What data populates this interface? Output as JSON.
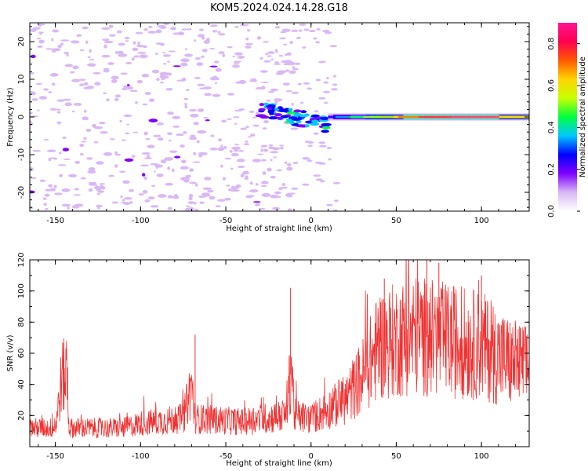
{
  "figure": {
    "title": "KOM5.2024.024.14.28.G18"
  },
  "chart_data": [
    {
      "type": "heatmap",
      "xlabel": "Height of straight line (km)",
      "ylabel": "Frequency (Hz)",
      "xlim": [
        -165,
        128
      ],
      "ylim": [
        -25,
        25
      ],
      "xticks": [
        -150,
        -100,
        -50,
        0,
        50,
        100
      ],
      "yticks": [
        -20,
        -10,
        0,
        10,
        20
      ],
      "colorbar": {
        "label": "Normalized spectral amplitude",
        "range": [
          0,
          0.9
        ],
        "ticks": [
          0.0,
          0.2,
          0.4,
          0.6,
          0.8
        ],
        "colors": [
          "#ffffff",
          "#d9b8f5",
          "#7f00ff",
          "#0000ff",
          "#00c8ff",
          "#00ff40",
          "#c8ff00",
          "#ffd400",
          "#ff5a00",
          "#ff0050",
          "#ff1493"
        ]
      },
      "features": [
        {
          "x_range": [
            10,
            128
          ],
          "frequency": 0,
          "amplitude": 0.6
        },
        {
          "x_range": [
            -30,
            10
          ],
          "frequency": 2,
          "amplitude": 0.3
        },
        {
          "x_range": [
            -165,
            -10
          ],
          "frequency_range": [
            -25,
            25
          ],
          "amplitude": 0.1
        }
      ]
    },
    {
      "type": "line",
      "xlabel": "Height of straight line (km)",
      "ylabel": "SNR (v/v)",
      "xlim": [
        -165,
        128
      ],
      "ylim": [
        0,
        120
      ],
      "xticks": [
        -150,
        -100,
        -50,
        0,
        50,
        100
      ],
      "yticks": [
        20,
        40,
        60,
        80,
        100,
        120
      ],
      "series_color": "#f03232",
      "profile": [
        {
          "x": -165,
          "y": 12
        },
        {
          "x": -150,
          "y": 12
        },
        {
          "x": -146,
          "y": 45
        },
        {
          "x": -143,
          "y": 45
        },
        {
          "x": -142,
          "y": 12
        },
        {
          "x": -110,
          "y": 12
        },
        {
          "x": -100,
          "y": 15
        },
        {
          "x": -75,
          "y": 18
        },
        {
          "x": -70,
          "y": 40
        },
        {
          "x": -68,
          "y": 18
        },
        {
          "x": -40,
          "y": 16
        },
        {
          "x": -15,
          "y": 20
        },
        {
          "x": -11,
          "y": 55
        },
        {
          "x": -10,
          "y": 20
        },
        {
          "x": 0,
          "y": 18
        },
        {
          "x": 20,
          "y": 30
        },
        {
          "x": 30,
          "y": 45
        },
        {
          "x": 40,
          "y": 65
        },
        {
          "x": 60,
          "y": 72
        },
        {
          "x": 80,
          "y": 68
        },
        {
          "x": 100,
          "y": 65
        },
        {
          "x": 115,
          "y": 55
        },
        {
          "x": 128,
          "y": 50
        }
      ],
      "peaks": [
        {
          "x": -145,
          "y": 67
        },
        {
          "x": -68,
          "y": 72
        },
        {
          "x": -12,
          "y": 102
        },
        {
          "x": 33,
          "y": 98
        },
        {
          "x": 43,
          "y": 108
        },
        {
          "x": 68,
          "y": 120
        },
        {
          "x": 75,
          "y": 118
        },
        {
          "x": 100,
          "y": 110
        }
      ]
    }
  ]
}
